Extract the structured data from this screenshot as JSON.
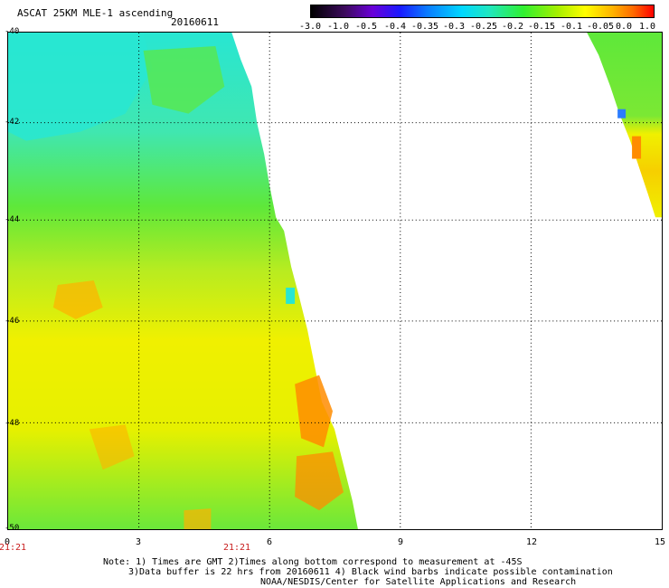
{
  "header": {
    "title": "ASCAT 25KM MLE-1 ascending",
    "date": "20160611"
  },
  "colorbar": {
    "ticks": [
      "-3.0",
      "-1.0",
      "-0.5",
      "-0.4",
      "-0.35",
      "-0.3",
      "-0.25",
      "-0.2",
      "-0.15",
      "-0.1",
      "-0.05",
      "0.0",
      "1.0"
    ]
  },
  "map": {
    "y_labels": [
      "-40",
      "-42",
      "-44",
      "-46",
      "-48",
      "-50"
    ],
    "x_labels": [
      "0",
      "3",
      "6",
      "9",
      "12",
      "15"
    ],
    "time_labels": [
      "21:21",
      "21:21"
    ],
    "swath_colors": {
      "cyan": "#28e6d2",
      "green": "#5ee83a",
      "yellow": "#f0f000",
      "orange": "#ff8c00",
      "blue": "#2a7cff"
    }
  },
  "notes": {
    "line1": "Note: 1) Times are GMT 2)Times along bottom correspond to measurement at -45S",
    "line2": "3)Data buffer is 22 hrs from 20160611 4) Black wind barbs indicate possible contamination",
    "line3": "NOAA/NESDIS/Center for Satellite Applications and Research"
  }
}
